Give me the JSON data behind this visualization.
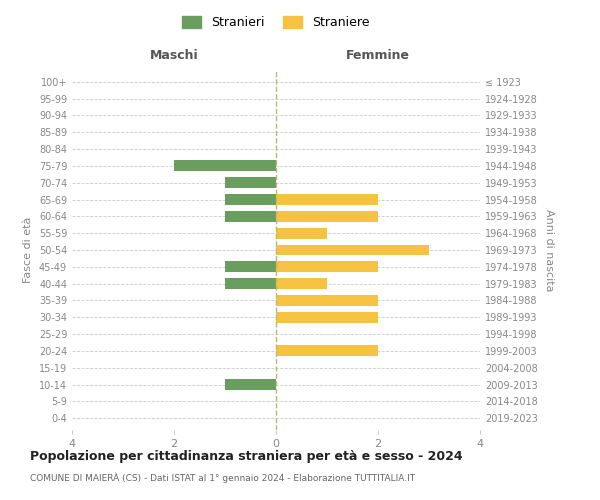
{
  "age_groups": [
    "0-4",
    "5-9",
    "10-14",
    "15-19",
    "20-24",
    "25-29",
    "30-34",
    "35-39",
    "40-44",
    "45-49",
    "50-54",
    "55-59",
    "60-64",
    "65-69",
    "70-74",
    "75-79",
    "80-84",
    "85-89",
    "90-94",
    "95-99",
    "100+"
  ],
  "birth_years": [
    "2019-2023",
    "2014-2018",
    "2009-2013",
    "2004-2008",
    "1999-2003",
    "1994-1998",
    "1989-1993",
    "1984-1988",
    "1979-1983",
    "1974-1978",
    "1969-1973",
    "1964-1968",
    "1959-1963",
    "1954-1958",
    "1949-1953",
    "1944-1948",
    "1939-1943",
    "1934-1938",
    "1929-1933",
    "1924-1928",
    "≤ 1923"
  ],
  "maschi": [
    0,
    0,
    1,
    0,
    0,
    0,
    0,
    0,
    1,
    1,
    0,
    0,
    1,
    1,
    1,
    2,
    0,
    0,
    0,
    0,
    0
  ],
  "femmine": [
    0,
    0,
    0,
    0,
    2,
    0,
    2,
    2,
    1,
    2,
    3,
    1,
    2,
    2,
    0,
    0,
    0,
    0,
    0,
    0,
    0
  ],
  "color_maschi": "#6a9e5e",
  "color_femmine": "#f5c242",
  "title": "Popolazione per cittadinanza straniera per età e sesso - 2024",
  "subtitle": "COMUNE DI MAIERÀ (CS) - Dati ISTAT al 1° gennaio 2024 - Elaborazione TUTTITALIA.IT",
  "xlabel_left": "Maschi",
  "xlabel_right": "Femmine",
  "ylabel_left": "Fasce di età",
  "ylabel_right": "Anni di nascita",
  "legend_maschi": "Stranieri",
  "legend_femmine": "Straniere",
  "xlim": 4,
  "background_color": "#ffffff",
  "grid_color": "#cccccc"
}
